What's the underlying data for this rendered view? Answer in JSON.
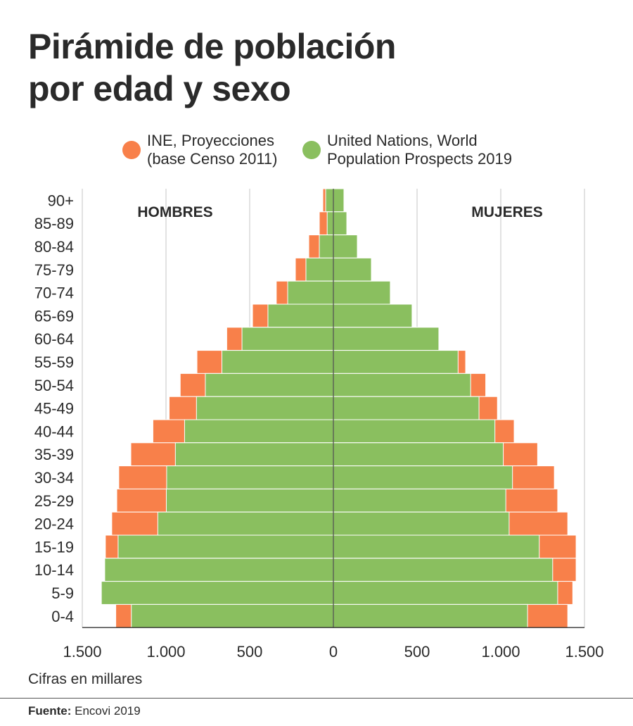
{
  "title": "Pirámide de población\npor edad y sexo",
  "legend": [
    {
      "label": "INE, Proyecciones\n(base Censo 2011)",
      "color": "#f8804a"
    },
    {
      "label": "United Nations, World\nPopulation Prospects 2019",
      "color": "#8abf5f"
    }
  ],
  "note": "Cifras en millares",
  "source": {
    "label": "Fuente:",
    "text": "Encovi 2019"
  },
  "chart_data": {
    "type": "bar",
    "orientation": "horizontal",
    "subtype": "population-pyramid",
    "group_labels": {
      "left": "HOMBRES",
      "right": "MUJERES"
    },
    "x_ticks": [
      {
        "value": -1500,
        "label": "1.500"
      },
      {
        "value": -1000,
        "label": "1.000"
      },
      {
        "value": -500,
        "label": "500"
      },
      {
        "value": 0,
        "label": "0"
      },
      {
        "value": 500,
        "label": "500"
      },
      {
        "value": 1000,
        "label": "1.000"
      },
      {
        "value": 1500,
        "label": "1.500"
      }
    ],
    "xlim": [
      -1500,
      1500
    ],
    "grid": true,
    "categories": [
      "90+",
      "85-89",
      "80-84",
      "75-79",
      "70-74",
      "65-69",
      "60-64",
      "55-59",
      "50-54",
      "45-49",
      "40-44",
      "35-39",
      "30-34",
      "25-29",
      "20-24",
      "15-19",
      "10-14",
      "5-9",
      "0-4"
    ],
    "series": [
      {
        "name": "INE, Proyecciones (base Censo 2011)",
        "color": "#f8804a",
        "hombres": [
          63,
          84,
          147,
          227,
          341,
          483,
          637,
          815,
          915,
          981,
          1078,
          1210,
          1282,
          1294,
          1324,
          1362,
          1366,
          1386,
          1300
        ],
        "mujeres": [
          56,
          80,
          143,
          227,
          340,
          470,
          630,
          790,
          910,
          980,
          1080,
          1220,
          1320,
          1340,
          1400,
          1450,
          1450,
          1430,
          1400
        ]
      },
      {
        "name": "United Nations, World Population Prospects 2019",
        "color": "#8abf5f",
        "hombres": [
          46,
          37,
          84,
          164,
          273,
          391,
          546,
          666,
          765,
          818,
          889,
          944,
          996,
          998,
          1049,
          1286,
          1366,
          1386,
          1207
        ],
        "mujeres": [
          63,
          80,
          143,
          227,
          340,
          470,
          630,
          745,
          820,
          870,
          965,
          1015,
          1070,
          1030,
          1050,
          1230,
          1310,
          1340,
          1160
        ]
      }
    ]
  }
}
